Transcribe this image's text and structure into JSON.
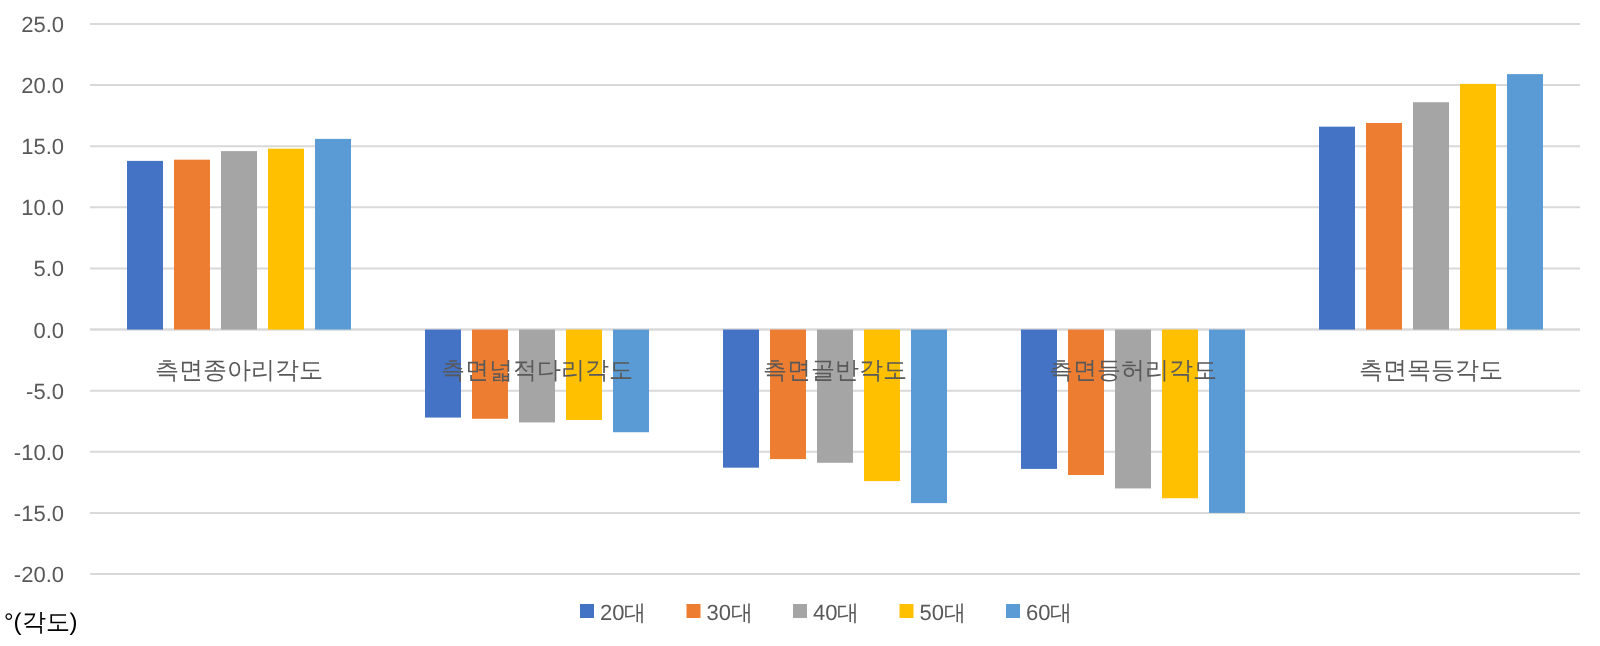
{
  "chart_data": {
    "type": "bar",
    "ylabel": "°(각도)",
    "categories": [
      "측면종아리각도",
      "측면넓적다리각도",
      "측면골반각도",
      "측면등허리각도",
      "측면목등각도"
    ],
    "series": [
      {
        "name": "20대",
        "color": "#4472c4",
        "values": [
          13.8,
          -7.2,
          -11.3,
          -11.4,
          16.6
        ]
      },
      {
        "name": "30대",
        "color": "#ed7d31",
        "values": [
          13.9,
          -7.3,
          -10.6,
          -11.9,
          16.9
        ]
      },
      {
        "name": "40대",
        "color": "#a5a5a5",
        "values": [
          14.6,
          -7.6,
          -10.9,
          -13.0,
          18.6
        ]
      },
      {
        "name": "50대",
        "color": "#ffc000",
        "values": [
          14.8,
          -7.4,
          -12.4,
          -13.8,
          20.1
        ]
      },
      {
        "name": "60대",
        "color": "#5b9bd5",
        "values": [
          15.6,
          -8.4,
          -14.2,
          -15.0,
          20.9
        ]
      }
    ],
    "ylim": [
      -20,
      25
    ],
    "yticks": [
      {
        "value": -20,
        "label": "-20.0"
      },
      {
        "value": -15,
        "label": "-15.0"
      },
      {
        "value": -10,
        "label": "-10.0"
      },
      {
        "value": -5,
        "label": "-5.0"
      },
      {
        "value": 0,
        "label": "0.0"
      },
      {
        "value": 5,
        "label": "5.0"
      },
      {
        "value": 10,
        "label": "10.0"
      },
      {
        "value": 15,
        "label": "15.0"
      },
      {
        "value": 20,
        "label": "20.0"
      },
      {
        "value": 25,
        "label": "25.0"
      }
    ],
    "grid": "y",
    "legend": "bottom"
  }
}
